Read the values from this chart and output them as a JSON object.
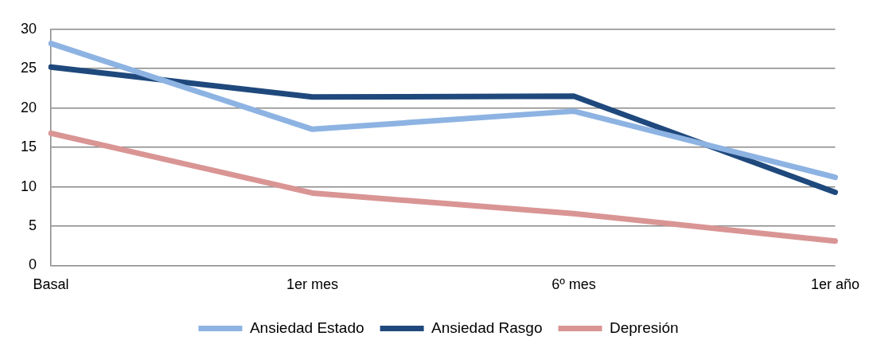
{
  "chart_data": {
    "type": "line",
    "categories": [
      "Basal",
      "1er mes",
      "6º mes",
      "1er año"
    ],
    "series": [
      {
        "name": "Ansiedad Estado",
        "color": "#8db3e2",
        "values": [
          28.2,
          17.3,
          19.6,
          11.2
        ]
      },
      {
        "name": "Ansiedad Rasgo",
        "color": "#1f497d",
        "values": [
          25.2,
          21.4,
          21.5,
          9.3
        ]
      },
      {
        "name": "Depresión",
        "color": "#d99594",
        "values": [
          16.8,
          9.2,
          6.6,
          3.1
        ]
      }
    ],
    "ylim": [
      0,
      30
    ],
    "yticks": [
      0,
      5,
      10,
      15,
      20,
      25,
      30
    ],
    "grid": "y",
    "legend": "bottom",
    "marker": "none",
    "line_style": "solid"
  }
}
